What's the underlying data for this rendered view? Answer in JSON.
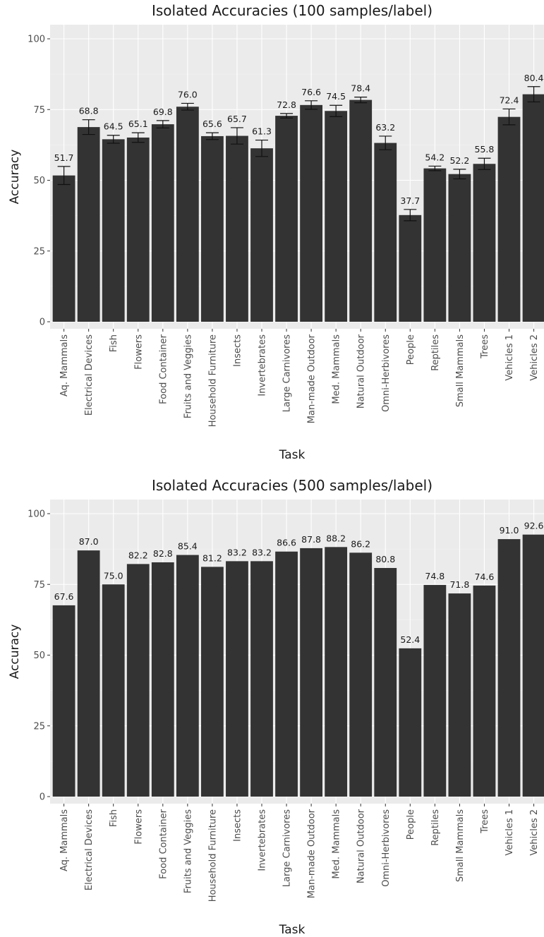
{
  "chart_data": [
    {
      "type": "bar",
      "title": "Isolated Accuracies (100 samples/label)",
      "xlabel": "Task",
      "ylabel": "Accuracy",
      "ylim": [
        0,
        100
      ],
      "yticks": [
        0,
        25,
        50,
        75,
        100
      ],
      "grid": true,
      "categories": [
        "Aq. Mammals",
        "Electrical Devices",
        "Fish",
        "Flowers",
        "Food Container",
        "Fruits and Veggies",
        "Household Furniture",
        "Insects",
        "Invertebrates",
        "Large Carnivores",
        "Man-made Outdoor",
        "Med. Mammals",
        "Natural Outdoor",
        "Omni-Herbivores",
        "People",
        "Reptiles",
        "Small Mammals",
        "Trees",
        "Vehicles 1",
        "Vehicles 2"
      ],
      "values": [
        51.7,
        68.8,
        64.5,
        65.1,
        69.8,
        76.0,
        65.6,
        65.7,
        61.3,
        72.8,
        76.6,
        74.5,
        78.4,
        63.2,
        37.7,
        54.2,
        52.2,
        55.8,
        72.4,
        80.4
      ],
      "labels": [
        "51.7",
        "68.8",
        "64.5",
        "65.1",
        "69.8",
        "76.0",
        "65.6",
        "65.7",
        "61.3",
        "72.8",
        "76.6",
        "74.5",
        "78.4",
        "63.2",
        "37.7",
        "54.2",
        "52.2",
        "55.8",
        "72.4",
        "80.4"
      ],
      "error": [
        3.2,
        2.6,
        1.4,
        1.7,
        1.3,
        1.2,
        1.2,
        2.9,
        2.9,
        0.8,
        1.5,
        2.0,
        1.0,
        2.4,
        2.0,
        0.8,
        1.7,
        2.0,
        2.8,
        2.7
      ]
    },
    {
      "type": "bar",
      "title": "Isolated Accuracies (500 samples/label)",
      "xlabel": "Task",
      "ylabel": "Accuracy",
      "ylim": [
        0,
        100
      ],
      "yticks": [
        0,
        25,
        50,
        75,
        100
      ],
      "grid": true,
      "categories": [
        "Aq. Mammals",
        "Electrical Devices",
        "Fish",
        "Flowers",
        "Food Container",
        "Fruits and Veggies",
        "Household Furniture",
        "Insects",
        "Invertebrates",
        "Large Carnivores",
        "Man-made Outdoor",
        "Med. Mammals",
        "Natural Outdoor",
        "Omni-Herbivores",
        "People",
        "Reptiles",
        "Small Mammals",
        "Trees",
        "Vehicles 1",
        "Vehicles 2"
      ],
      "values": [
        67.6,
        87.0,
        75.0,
        82.2,
        82.8,
        85.4,
        81.2,
        83.2,
        83.2,
        86.6,
        87.8,
        88.2,
        86.2,
        80.8,
        52.4,
        74.8,
        71.8,
        74.6,
        91.0,
        92.6
      ],
      "labels": [
        "67.6",
        "87.0",
        "75.0",
        "82.2",
        "82.8",
        "85.4",
        "81.2",
        "83.2",
        "83.2",
        "86.6",
        "87.8",
        "88.2",
        "86.2",
        "80.8",
        "52.4",
        "74.8",
        "71.8",
        "74.6",
        "91.0",
        "92.6"
      ]
    }
  ]
}
